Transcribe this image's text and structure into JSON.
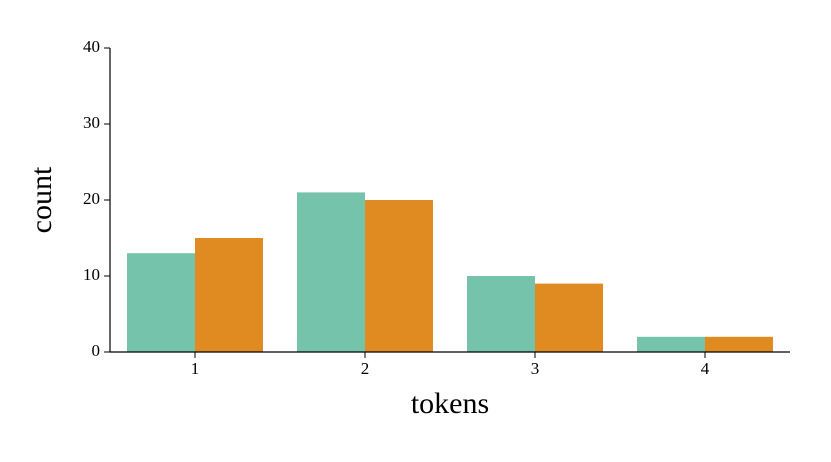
{
  "chart_data": {
    "type": "bar",
    "x_label": "tokens",
    "y_label": "count",
    "categories": [
      "1",
      "2",
      "3",
      "4"
    ],
    "series": [
      {
        "color": "#75c3aa",
        "values": [
          13,
          21,
          10,
          2
        ]
      },
      {
        "color": "#e08a22",
        "values": [
          15,
          20,
          9,
          2
        ]
      }
    ],
    "ylim": [
      0,
      40
    ],
    "yticks": [
      0,
      10,
      20,
      30,
      40
    ]
  }
}
